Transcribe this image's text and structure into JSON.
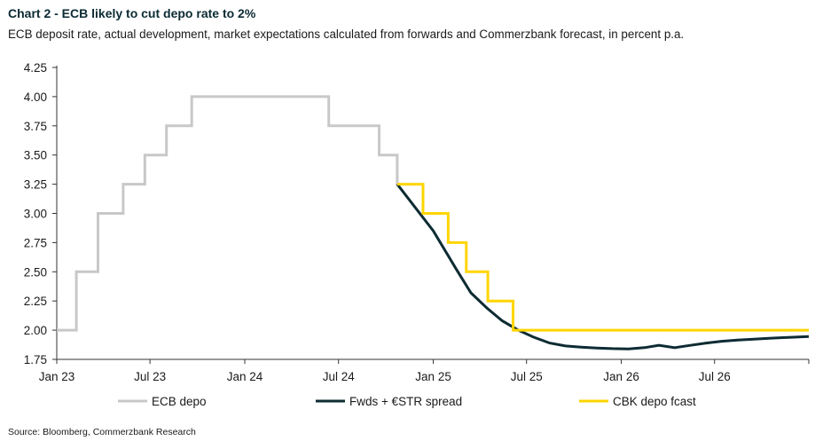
{
  "header": {
    "title": "Chart 2 - ECB likely to cut depo rate to 2%",
    "subtitle": "ECB deposit rate, actual development, market expectations calculated from forwards and Commerzbank forecast, in percent p.a."
  },
  "footer": {
    "source": "Source: Bloomberg, Commerzbank Research"
  },
  "chart_data": {
    "type": "line",
    "title": "Chart 2 - ECB likely to cut depo rate to 2%",
    "subtitle": "ECB deposit rate, actual development, market expectations calculated from forwards and Commerzbank forecast, in percent p.a.",
    "xlabel": "",
    "ylabel": "",
    "x_range": [
      "2023-01-01",
      "2026-12-31"
    ],
    "ylim": [
      1.75,
      4.25
    ],
    "y_ticks": [
      "1.75",
      "2.00",
      "2.25",
      "2.50",
      "2.75",
      "3.00",
      "3.25",
      "3.50",
      "3.75",
      "4.00",
      "4.25"
    ],
    "x_ticks": [
      {
        "date": "2023-01-01",
        "label": "Jan 23"
      },
      {
        "date": "2023-07-01",
        "label": "Jul 23"
      },
      {
        "date": "2024-01-01",
        "label": "Jan 24"
      },
      {
        "date": "2024-07-01",
        "label": "Jul 24"
      },
      {
        "date": "2025-01-01",
        "label": "Jan 25"
      },
      {
        "date": "2025-07-01",
        "label": "Jul 25"
      },
      {
        "date": "2026-01-01",
        "label": "Jan 26"
      },
      {
        "date": "2026-07-01",
        "label": "Jul 26"
      }
    ],
    "grid": false,
    "legend_position": "bottom",
    "series": [
      {
        "name": "ECB depo",
        "color": "#c8c8c8",
        "step": true,
        "points": [
          [
            "2023-01-01",
            2.0
          ],
          [
            "2023-02-08",
            2.5
          ],
          [
            "2023-03-22",
            3.0
          ],
          [
            "2023-05-10",
            3.25
          ],
          [
            "2023-06-21",
            3.5
          ],
          [
            "2023-08-02",
            3.75
          ],
          [
            "2023-09-20",
            4.0
          ],
          [
            "2024-06-12",
            3.75
          ],
          [
            "2024-09-18",
            3.5
          ],
          [
            "2024-10-23",
            3.25
          ],
          [
            "2024-10-31",
            3.25
          ]
        ]
      },
      {
        "name": "Fwds + €STR spread",
        "color": "#0d2b33",
        "step": false,
        "points": [
          [
            "2024-10-23",
            3.25
          ],
          [
            "2025-01-01",
            2.85
          ],
          [
            "2025-02-15",
            2.52
          ],
          [
            "2025-03-15",
            2.32
          ],
          [
            "2025-04-15",
            2.19
          ],
          [
            "2025-05-15",
            2.08
          ],
          [
            "2025-06-15",
            2.0
          ],
          [
            "2025-07-15",
            1.94
          ],
          [
            "2025-08-15",
            1.89
          ],
          [
            "2025-09-15",
            1.865
          ],
          [
            "2025-10-15",
            1.855
          ],
          [
            "2025-11-15",
            1.847
          ],
          [
            "2025-12-15",
            1.842
          ],
          [
            "2026-01-15",
            1.84
          ],
          [
            "2026-02-15",
            1.85
          ],
          [
            "2026-03-15",
            1.87
          ],
          [
            "2026-04-15",
            1.85
          ],
          [
            "2026-05-15",
            1.87
          ],
          [
            "2026-06-15",
            1.89
          ],
          [
            "2026-07-15",
            1.905
          ],
          [
            "2026-08-15",
            1.915
          ],
          [
            "2026-09-15",
            1.923
          ],
          [
            "2026-10-15",
            1.93
          ],
          [
            "2026-11-15",
            1.937
          ],
          [
            "2026-12-31",
            1.945
          ]
        ]
      },
      {
        "name": "CBK depo fcast",
        "color": "#ffd500",
        "step": true,
        "points": [
          [
            "2024-10-23",
            3.25
          ],
          [
            "2024-12-12",
            3.0
          ],
          [
            "2025-01-30",
            2.75
          ],
          [
            "2025-03-06",
            2.5
          ],
          [
            "2025-04-17",
            2.25
          ],
          [
            "2025-06-05",
            2.0
          ],
          [
            "2026-12-31",
            2.0
          ]
        ]
      }
    ]
  }
}
